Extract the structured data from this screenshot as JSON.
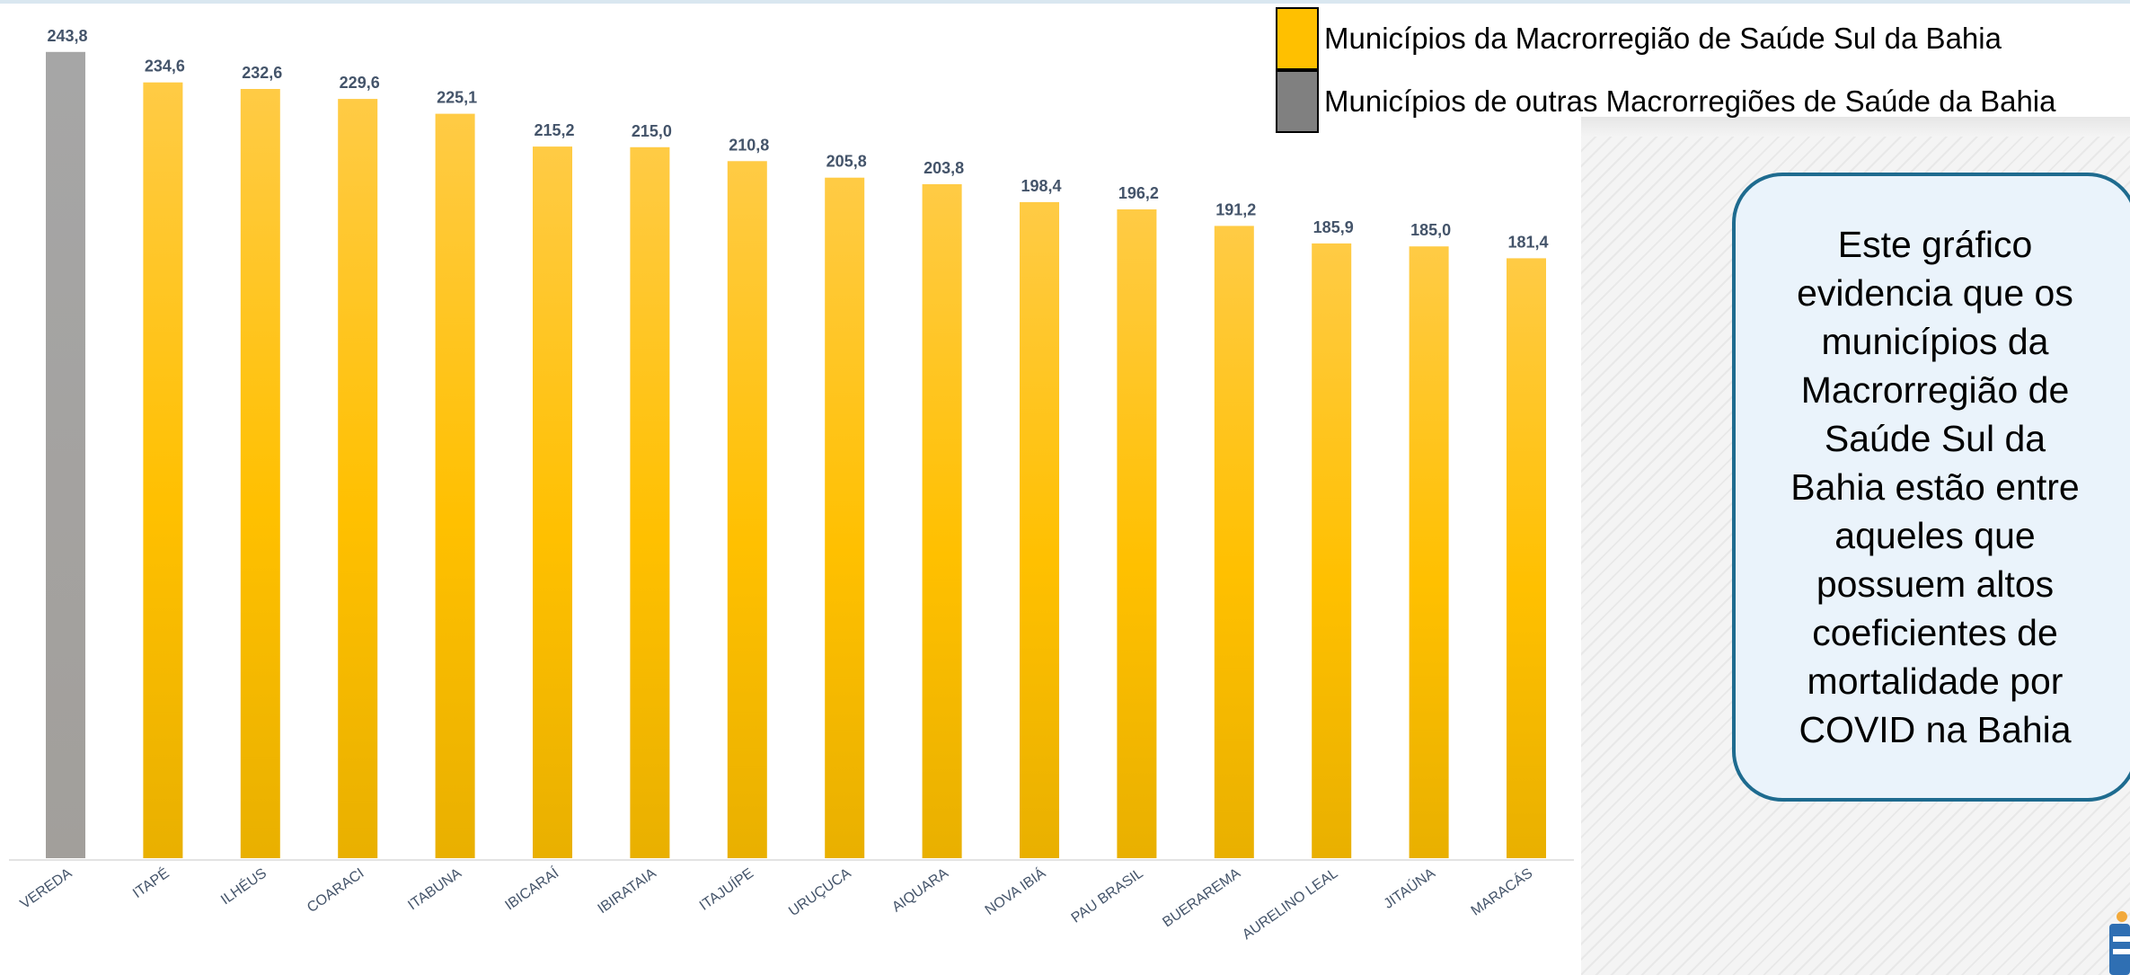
{
  "chart_data": {
    "type": "bar",
    "categories": [
      "VEREDA",
      "ITAPÉ",
      "ILHÉUS",
      "COARACI",
      "ITABUNA",
      "IBICARAÍ",
      "IBIRATAIA",
      "ITAJUÍPE",
      "URUÇUCA",
      "AIQUARA",
      "NOVA IBIÁ",
      "PAU BRASIL",
      "BUERAREMA",
      "AURELINO LEAL",
      "JITAÚNA",
      "MARACÁS"
    ],
    "values": [
      243.8,
      234.6,
      232.6,
      229.6,
      225.1,
      215.2,
      215.0,
      210.8,
      205.8,
      203.8,
      198.4,
      196.2,
      191.2,
      185.9,
      185.0,
      181.4
    ],
    "data_labels": [
      "243,8",
      "234,6",
      "232,6",
      "229,6",
      "225,1",
      "215,2",
      "215,0",
      "210,8",
      "205,8",
      "203,8",
      "198,4",
      "196,2",
      "191,2",
      "185,9",
      "185,0",
      "181,4"
    ],
    "groups": [
      "other",
      "sul",
      "sul",
      "sul",
      "sul",
      "sul",
      "sul",
      "sul",
      "sul",
      "sul",
      "sul",
      "sul",
      "sul",
      "sul",
      "sul",
      "sul"
    ],
    "ylim": [
      0,
      250
    ],
    "grid": false,
    "legend_position": "top-right",
    "colors": {
      "sul": "#ffc000",
      "other": "#a6a6a6"
    }
  },
  "legend": {
    "items": [
      {
        "label": "Municípios da Macrorregião de Saúde Sul da Bahia",
        "color": "#ffc000"
      },
      {
        "label": "Municípios de outras Macrorregiões de Saúde da Bahia",
        "color": "#808080"
      }
    ]
  },
  "callout": {
    "text": "Este gráfico evidencia que os municípios da Macrorregião de Saúde Sul da Bahia estão entre aqueles que possuem altos coeficientes de mortalidade por COVID na Bahia"
  },
  "icons": {
    "corner": "presenter-figure-icon"
  }
}
